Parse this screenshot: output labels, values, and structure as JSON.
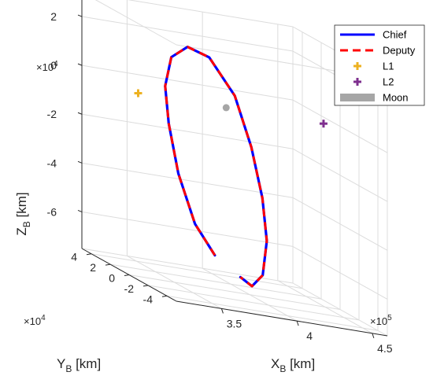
{
  "chart_data": {
    "type": "line",
    "projection": "3d",
    "xlabel": "X_B [km]",
    "ylabel": "Y_B [km]",
    "zlabel": "Z_B [km]",
    "x_ticks": [
      "3.5",
      "4",
      "4.5"
    ],
    "x_exponent": "×10^5",
    "y_ticks": [
      "4",
      "2",
      "0",
      "-2",
      "-4"
    ],
    "y_exponent": "×10^4",
    "z_ticks": [
      "2",
      "0",
      "-2",
      "-4",
      "-6"
    ],
    "z_exponent": "×10^4",
    "xlim": [
      320000,
      460000
    ],
    "ylim": [
      -50000,
      50000
    ],
    "zlim": [
      -75000,
      30000
    ],
    "grid": true,
    "legend_position": "top-right",
    "series": [
      {
        "name": "Chief",
        "color": "#0000ff",
        "style": "solid",
        "points": [
          [
            380000,
            5000,
            -62000
          ],
          [
            365000,
            2000,
            -50000
          ],
          [
            352000,
            -1000,
            -30000
          ],
          [
            345000,
            -2000,
            -10000
          ],
          [
            343000,
            -1500,
            5000
          ],
          [
            348000,
            0,
            17000
          ],
          [
            360000,
            2000,
            22000
          ],
          [
            375000,
            3000,
            19000
          ],
          [
            392000,
            3000,
            5000
          ],
          [
            403000,
            3000,
            -15000
          ],
          [
            410000,
            2500,
            -35000
          ],
          [
            412000,
            1000,
            -52000
          ],
          [
            408000,
            -1000,
            -66000
          ],
          [
            400000,
            -2500,
            -71000
          ],
          [
            392000,
            -3000,
            -68000
          ]
        ]
      },
      {
        "name": "Deputy",
        "color": "#ff0000",
        "style": "dashed",
        "points": [
          [
            380000,
            5000,
            -62000
          ],
          [
            365000,
            2000,
            -50000
          ],
          [
            352000,
            -1000,
            -30000
          ],
          [
            345000,
            -2000,
            -10000
          ],
          [
            343000,
            -1500,
            5000
          ],
          [
            348000,
            0,
            17000
          ],
          [
            360000,
            2000,
            22000
          ],
          [
            375000,
            3000,
            19000
          ],
          [
            392000,
            3000,
            5000
          ],
          [
            403000,
            3000,
            -15000
          ],
          [
            410000,
            2500,
            -35000
          ],
          [
            412000,
            1000,
            -52000
          ],
          [
            408000,
            -1000,
            -66000
          ],
          [
            400000,
            -2500,
            -71000
          ],
          [
            392000,
            -3000,
            -68000
          ]
        ]
      },
      {
        "name": "L1",
        "color": "#edb120",
        "marker": "+",
        "points": [
          [
            326000,
            0,
            0
          ]
        ]
      },
      {
        "name": "L2",
        "color": "#7e2f8e",
        "marker": "+",
        "points": [
          [
            449000,
            0,
            0
          ]
        ]
      },
      {
        "name": "Moon",
        "color": "#a6a6a6",
        "marker": "o",
        "points": [
          [
            384400,
            0,
            0
          ]
        ]
      }
    ]
  }
}
